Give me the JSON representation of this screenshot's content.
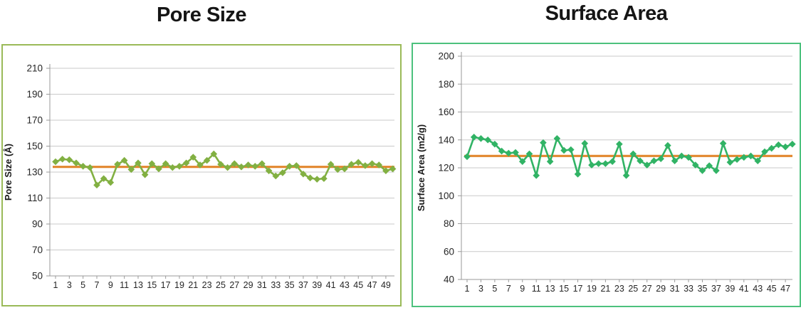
{
  "page": {
    "background": "#ffffff"
  },
  "chart_data": [
    {
      "type": "line",
      "title": "Pore Size",
      "ylabel": "Pore Size (Å)",
      "xlabel": "",
      "ylim": [
        50,
        210
      ],
      "yticks": [
        210,
        190,
        170,
        150,
        130,
        110,
        90,
        70,
        50
      ],
      "xticks": [
        1,
        3,
        5,
        7,
        9,
        11,
        13,
        15,
        17,
        19,
        21,
        23,
        25,
        27,
        29,
        31,
        33,
        35,
        37,
        39,
        41,
        43,
        45,
        47,
        49
      ],
      "x_range": [
        1,
        50
      ],
      "values": [
        138,
        140,
        139.5,
        137,
        134.5,
        133.5,
        120,
        125,
        122,
        136,
        139,
        132,
        137,
        128,
        136.5,
        132.5,
        136.5,
        133.5,
        134.5,
        137,
        141.5,
        135.5,
        139,
        144,
        136,
        133.5,
        136.5,
        134,
        135.5,
        134.5,
        136.5,
        131,
        127,
        129.5,
        134.5,
        135,
        128.5,
        125.5,
        124.5,
        125,
        136,
        132,
        132.5,
        136,
        137.5,
        135,
        136.5,
        135.5,
        131,
        132.5
      ],
      "mean_line": 134,
      "marker": "diamond",
      "grid": true,
      "legend": "none",
      "colors": {
        "series": "#82B042",
        "mean": "#E2872E",
        "border": "#9ABA58"
      }
    },
    {
      "type": "line",
      "title": "Surface Area",
      "ylabel": "Surface Area (m2/g)",
      "xlabel": "",
      "ylim": [
        40,
        200
      ],
      "yticks": [
        200,
        180,
        160,
        140,
        120,
        100,
        80,
        60,
        40
      ],
      "xticks": [
        1,
        3,
        5,
        7,
        9,
        11,
        13,
        15,
        17,
        19,
        21,
        23,
        25,
        27,
        29,
        31,
        33,
        35,
        37,
        39,
        41,
        43,
        45,
        47
      ],
      "x_range": [
        1,
        48
      ],
      "values": [
        128,
        142,
        141,
        140,
        137,
        132,
        130.5,
        131,
        124.5,
        130,
        114.5,
        138,
        124.5,
        141,
        132.5,
        133,
        115.5,
        137.5,
        122,
        123,
        123,
        124.5,
        137,
        114.5,
        130,
        125,
        122,
        125,
        126.5,
        136,
        125,
        128.5,
        127.5,
        122,
        118,
        121.5,
        118,
        137.5,
        124,
        126,
        127.5,
        128.5,
        125,
        131.5,
        134,
        136.5,
        135,
        137
      ],
      "mean_line": 128.5,
      "marker": "diamond",
      "grid": true,
      "legend": "none",
      "colors": {
        "series": "#31B365",
        "mean": "#E2872E",
        "border": "#4CC17D"
      }
    }
  ]
}
